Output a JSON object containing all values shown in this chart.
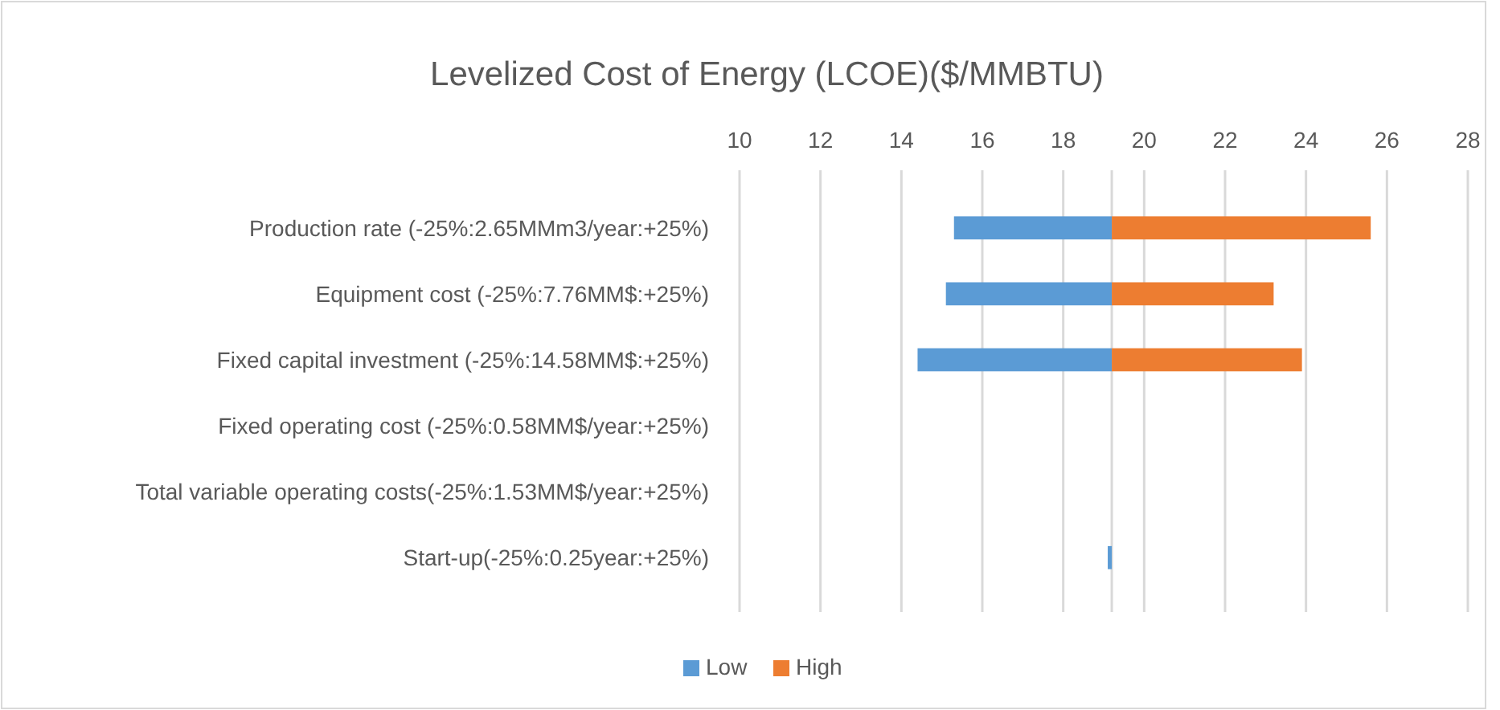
{
  "chart_data": {
    "type": "bar",
    "orientation": "horizontal",
    "title": "Levelized Cost of Energy (LCOE)($/MMBTU)",
    "categories": [
      "Production rate (-25%:2.65MMm3/year:+25%)",
      "Equipment cost  (-25%:7.76MM$:+25%)",
      "Fixed capital investment (-25%:14.58MM$:+25%)",
      "Fixed operating cost (-25%:0.58MM$/year:+25%)",
      "Total variable operating costs(-25%:1.53MM$/year:+25%)",
      "Start-up(-25%:0.25year:+25%)"
    ],
    "series": [
      {
        "name": "Low",
        "color": "#5b9bd5",
        "base": [
          15.3,
          15.1,
          14.4,
          null,
          null,
          19.1
        ],
        "values": [
          3.9,
          4.1,
          4.8,
          null,
          null,
          0.1
        ]
      },
      {
        "name": "High",
        "color": "#ed7d31",
        "base": [
          19.2,
          19.2,
          19.2,
          null,
          null,
          null
        ],
        "values": [
          6.4,
          4.0,
          4.7,
          null,
          null,
          null
        ]
      }
    ],
    "xlim": [
      10,
      28
    ],
    "xticks": [
      10,
      12,
      14,
      16,
      18,
      20,
      22,
      24,
      26,
      28
    ],
    "ref_lines": [
      {
        "axis": "x",
        "value": 19.2,
        "color": "#d9d9d9"
      }
    ],
    "grid": "x",
    "legend": "bottom"
  }
}
